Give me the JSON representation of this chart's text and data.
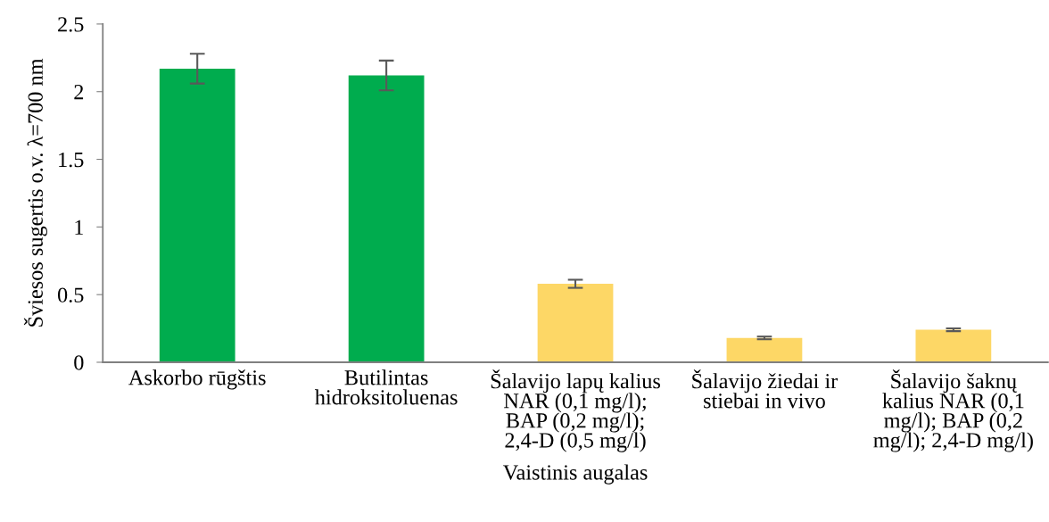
{
  "chart_data": {
    "type": "bar",
    "xlabel": "Vaistinis augalas",
    "ylabel": "Šviesos sugertis o.v. λ=700 nm",
    "categories": [
      "Askorbo rūgštis",
      "Butilintas\nhidroksitoluenas",
      "Šalavijo lapų kalius\nNAR (0,1 mg/l);\nBAP (0,2 mg/l);\n2,4-D (0,5 mg/l)",
      "Šalavijo žiedai ir\nstiebai in vivo",
      "Šalavijo šaknų\nkalius NAR (0,1\nmg/l); BAP (0,2\nmg/l); 2,4-D mg/l)"
    ],
    "values": [
      2.17,
      2.12,
      0.58,
      0.18,
      0.24
    ],
    "errors": [
      0.11,
      0.11,
      0.03,
      0.01,
      0.01
    ],
    "colors": [
      "#00ac4e",
      "#00ac4e",
      "#fdd766",
      "#fdd766",
      "#fdd766"
    ],
    "ylim": [
      0,
      2.5
    ],
    "yticks": [
      0,
      0.5,
      1,
      1.5,
      2,
      2.5
    ],
    "grid": false,
    "legend": false
  }
}
